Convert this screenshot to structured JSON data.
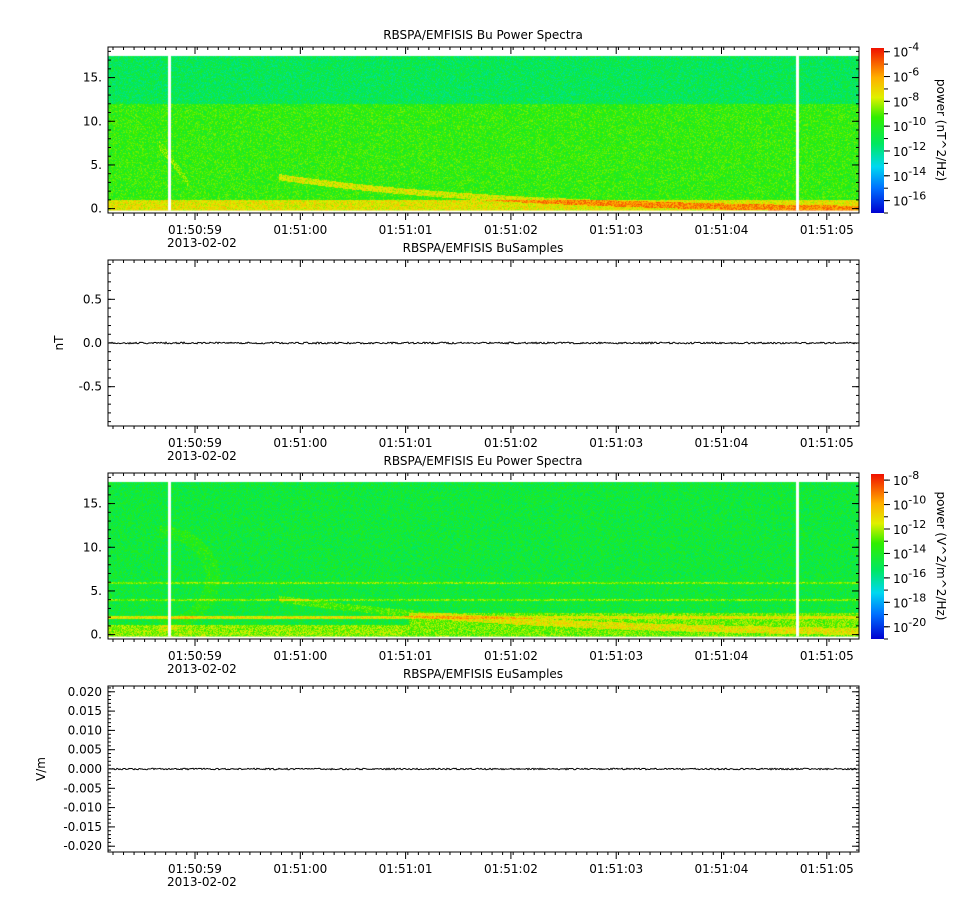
{
  "chart_data": [
    {
      "type": "heatmap",
      "title": "RBSPA/EMFISIS  Bu Power Spectra",
      "xlabel": "",
      "ylabel": "",
      "x_tick_labels": [
        "01:50:59",
        "01:51:00",
        "01:51:01",
        "01:51:02",
        "01:51:03",
        "01:51:04",
        "01:51:05"
      ],
      "x_date_label": "2013-02-02",
      "y_ticks": [
        0,
        5,
        10,
        15
      ],
      "y_tick_labels": [
        "0.",
        "5.",
        "10.",
        "15."
      ],
      "ylim": [
        -0.5,
        18.5
      ],
      "y_max_data": 17.5,
      "y_band_edge": 12,
      "colorbar": {
        "label": "power (nT^2/Hz)",
        "exponents": [
          -4,
          -6,
          -8,
          -10,
          -12,
          -14,
          -16
        ],
        "range_exp": [
          -17,
          -3.7
        ]
      },
      "gaps_x": [
        0.8,
        12.1
      ]
    },
    {
      "type": "line",
      "title": "RBSPA/EMFISIS  BuSamples",
      "xlabel": "",
      "ylabel": "nT",
      "x_tick_labels": [
        "01:50:59",
        "01:51:00",
        "01:51:01",
        "01:51:02",
        "01:51:03",
        "01:51:04",
        "01:51:05"
      ],
      "x_date_label": "2013-02-02",
      "y_ticks": [
        -0.5,
        0.0,
        0.5
      ],
      "y_tick_labels": [
        "-0.5",
        "0.0",
        "0.5"
      ],
      "ylim": [
        -0.95,
        0.95
      ],
      "series": [
        {
          "value": 0.0,
          "noise_amplitude": 0.01
        }
      ]
    },
    {
      "type": "heatmap",
      "title": "RBSPA/EMFISIS  Eu Power Spectra",
      "xlabel": "",
      "ylabel": "",
      "x_tick_labels": [
        "01:50:59",
        "01:51:00",
        "01:51:01",
        "01:51:02",
        "01:51:03",
        "01:51:04",
        "01:51:05"
      ],
      "x_date_label": "2013-02-02",
      "y_ticks": [
        0,
        5,
        10,
        15
      ],
      "y_tick_labels": [
        "0.",
        "5.",
        "10.",
        "15."
      ],
      "ylim": [
        -0.5,
        18.5
      ],
      "y_max_data": 17.5,
      "colorbar": {
        "label": "power (V^2/m^2/Hz)",
        "exponents": [
          -8,
          -10,
          -12,
          -14,
          -16,
          -18,
          -20
        ],
        "range_exp": [
          -21,
          -7.5
        ]
      },
      "gaps_x": [
        0.8,
        12.1
      ]
    },
    {
      "type": "line",
      "title": "RBSPA/EMFISIS  EuSamples",
      "xlabel": "",
      "ylabel": "V/m",
      "x_tick_labels": [
        "01:50:59",
        "01:51:00",
        "01:51:01",
        "01:51:02",
        "01:51:03",
        "01:51:04",
        "01:51:05"
      ],
      "x_date_label": "2013-02-02",
      "y_ticks": [
        0.02,
        0.015,
        0.01,
        0.005,
        0.0,
        -0.005,
        -0.01,
        -0.015,
        -0.02
      ],
      "y_tick_labels": [
        "0.020",
        "0.015",
        "0.010",
        "0.005",
        "0.000",
        "-0.005",
        "-0.010",
        "-0.015",
        "-0.020"
      ],
      "ylim": [
        -0.0215,
        0.0215
      ],
      "series": [
        {
          "value": 0.0,
          "noise_amplitude": 0.0002
        }
      ]
    }
  ]
}
